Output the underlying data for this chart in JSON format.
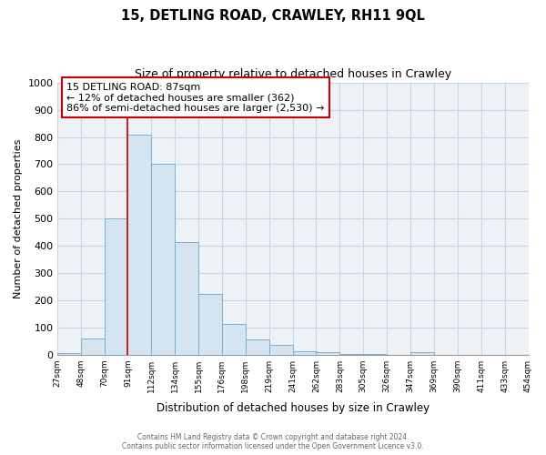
{
  "title": "15, DETLING ROAD, CRAWLEY, RH11 9QL",
  "subtitle": "Size of property relative to detached houses in Crawley",
  "xlabel": "Distribution of detached houses by size in Crawley",
  "ylabel": "Number of detached properties",
  "footer_line1": "Contains HM Land Registry data © Crown copyright and database right 2024.",
  "footer_line2": "Contains public sector information licensed under the Open Government Licence v3.0.",
  "bin_labels": [
    "27sqm",
    "48sqm",
    "70sqm",
    "91sqm",
    "112sqm",
    "134sqm",
    "155sqm",
    "176sqm",
    "198sqm",
    "219sqm",
    "241sqm",
    "262sqm",
    "283sqm",
    "305sqm",
    "326sqm",
    "347sqm",
    "369sqm",
    "390sqm",
    "411sqm",
    "433sqm",
    "454sqm"
  ],
  "bar_values": [
    7,
    60,
    500,
    810,
    700,
    415,
    225,
    115,
    57,
    37,
    15,
    10,
    5,
    3,
    2,
    10,
    1,
    1,
    0,
    0
  ],
  "bar_color": "#d4e4f0",
  "bar_edge_color": "#7aafcf",
  "property_label": "15 DETLING ROAD: 87sqm",
  "annotation_line1": "← 12% of detached houses are smaller (362)",
  "annotation_line2": "86% of semi-detached houses are larger (2,530) →",
  "vline_color": "#cc0000",
  "annotation_box_edge": "#cc0000",
  "vline_index": 3,
  "ylim": [
    0,
    1000
  ],
  "yticks": [
    0,
    100,
    200,
    300,
    400,
    500,
    600,
    700,
    800,
    900,
    1000
  ],
  "grid_color": "#c8d4e0",
  "ax_bg_color": "#edf2f7",
  "figsize": [
    6.0,
    5.0
  ],
  "dpi": 100
}
